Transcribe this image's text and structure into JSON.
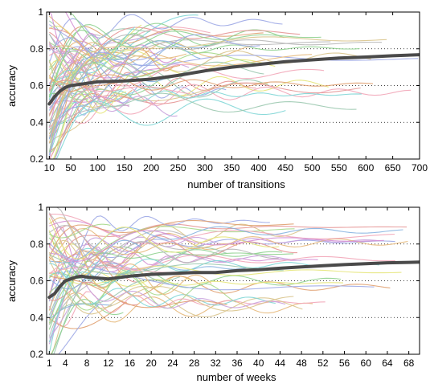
{
  "chart_data": [
    {
      "type": "line",
      "xlabel": "number of transitions",
      "ylabel": "accuracy",
      "xlim": [
        5,
        700
      ],
      "ylim": [
        0.2,
        1.0
      ],
      "xticks": [
        10,
        50,
        100,
        150,
        200,
        250,
        300,
        350,
        400,
        450,
        500,
        550,
        600,
        650,
        700
      ],
      "yticks": [
        0.2,
        0.4,
        0.6,
        0.8,
        1.0
      ],
      "ytick_labels": [
        "0.2",
        "0.4",
        "0.6",
        "0.8",
        "1"
      ],
      "grid": "horizontal dotted",
      "series_count": 80,
      "mean_series": {
        "color": "#4a4a4a",
        "x": [
          10,
          20,
          30,
          40,
          50,
          75,
          100,
          150,
          200,
          250,
          300,
          350,
          400,
          450,
          500,
          550,
          600,
          650,
          700
        ],
        "values": [
          0.5,
          0.54,
          0.57,
          0.59,
          0.6,
          0.61,
          0.62,
          0.625,
          0.635,
          0.655,
          0.68,
          0.7,
          0.715,
          0.73,
          0.74,
          0.75,
          0.755,
          0.762,
          0.768
        ]
      }
    },
    {
      "type": "line",
      "xlabel": "number of weeks",
      "ylabel": "accuracy",
      "xlim": [
        0.5,
        70
      ],
      "ylim": [
        0.2,
        1.0
      ],
      "xticks": [
        1,
        4,
        8,
        12,
        16,
        20,
        24,
        28,
        32,
        36,
        40,
        44,
        48,
        52,
        56,
        60,
        64,
        68
      ],
      "yticks": [
        0.2,
        0.4,
        0.6,
        0.8,
        1.0
      ],
      "ytick_labels": [
        "0.2",
        "0.4",
        "0.6",
        "0.8",
        "1"
      ],
      "grid": "horizontal dotted",
      "series_count": 60,
      "mean_series": {
        "color": "#4a4a4a",
        "x": [
          1,
          2,
          3,
          4,
          5,
          6,
          7,
          8,
          10,
          12,
          16,
          20,
          24,
          28,
          32,
          36,
          40,
          44,
          48,
          52,
          56,
          60,
          64,
          68,
          70
        ],
        "values": [
          0.51,
          0.53,
          0.57,
          0.6,
          0.61,
          0.62,
          0.625,
          0.62,
          0.615,
          0.61,
          0.625,
          0.635,
          0.64,
          0.645,
          0.645,
          0.655,
          0.66,
          0.668,
          0.675,
          0.682,
          0.688,
          0.693,
          0.698,
          0.7,
          0.702
        ]
      }
    }
  ],
  "palette": [
    "#e69696",
    "#8fd18f",
    "#9da8e6",
    "#e6b87a",
    "#d48fd4",
    "#7fd6d6",
    "#e6e67a",
    "#b8b8b8",
    "#c9a0dc",
    "#a6d98c",
    "#f2a6b8",
    "#86b3e0",
    "#d9c48c",
    "#9cc9b0",
    "#e0a070"
  ]
}
